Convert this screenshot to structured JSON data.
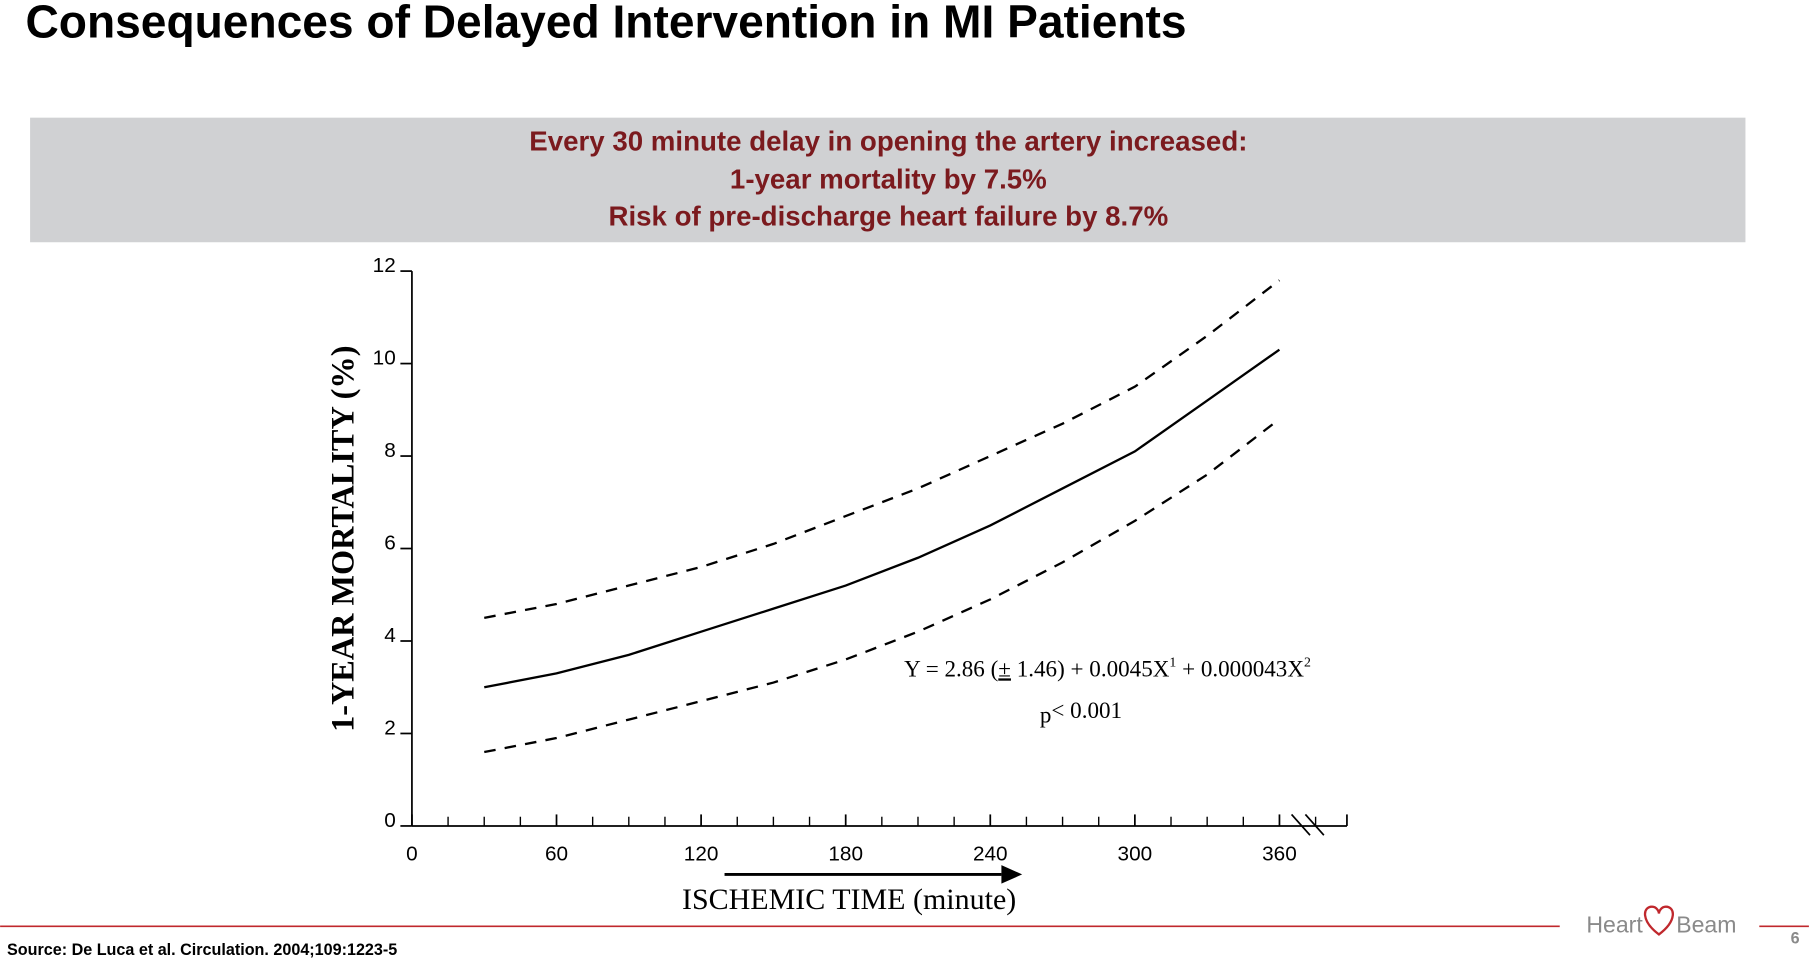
{
  "title": "Consequences of Delayed Intervention in MI Patients",
  "banner": [
    "Every 30 minute delay in opening the artery increased:",
    "1-year mortality by 7.5%",
    "Risk of pre-discharge heart failure by 8.7%"
  ],
  "chart_data": {
    "type": "line",
    "ylabel": "1-YEAR MORTALITY (%)",
    "xlabel": "ISCHEMIC TIME (minute)",
    "x": [
      30,
      60,
      90,
      120,
      150,
      180,
      210,
      240,
      270,
      300,
      330,
      360
    ],
    "series": [
      {
        "color": "#000000",
        "dash": false,
        "values": [
          3.0,
          3.3,
          3.7,
          4.2,
          4.7,
          5.2,
          5.8,
          6.5,
          7.3,
          8.1,
          9.2,
          10.3
        ]
      },
      {
        "color": "#000000",
        "dash": true,
        "values": [
          4.5,
          4.8,
          5.2,
          5.6,
          6.1,
          6.7,
          7.3,
          8.0,
          8.7,
          9.5,
          10.6,
          11.8
        ]
      },
      {
        "color": "#000000",
        "dash": true,
        "values": [
          1.6,
          1.9,
          2.3,
          2.7,
          3.1,
          3.6,
          4.2,
          4.9,
          5.7,
          6.6,
          7.6,
          8.8
        ]
      }
    ],
    "xlim": [
      0,
      388
    ],
    "xticks": [
      0,
      60,
      120,
      180,
      240,
      300,
      360
    ],
    "xminor_ticks": [
      15,
      30,
      45,
      75,
      90,
      105,
      135,
      150,
      165,
      195,
      210,
      225,
      255,
      270,
      285,
      315,
      330,
      345,
      375
    ],
    "ylim": [
      0,
      12
    ],
    "yticks": [
      0,
      2,
      4,
      6,
      8,
      10,
      12
    ],
    "axis_break": true,
    "equation": [
      "Y = 2.86 (",
      "±",
      " 1.46) + 0.0045X",
      "1",
      " + 0.000043X",
      "2"
    ],
    "p_value": [
      "p",
      "< 0.001"
    ]
  },
  "source": "Source:  De Luca et al. Circulation. 2004;109:1223-5",
  "logo": [
    "Heart",
    "Beam"
  ],
  "page_number": "6"
}
